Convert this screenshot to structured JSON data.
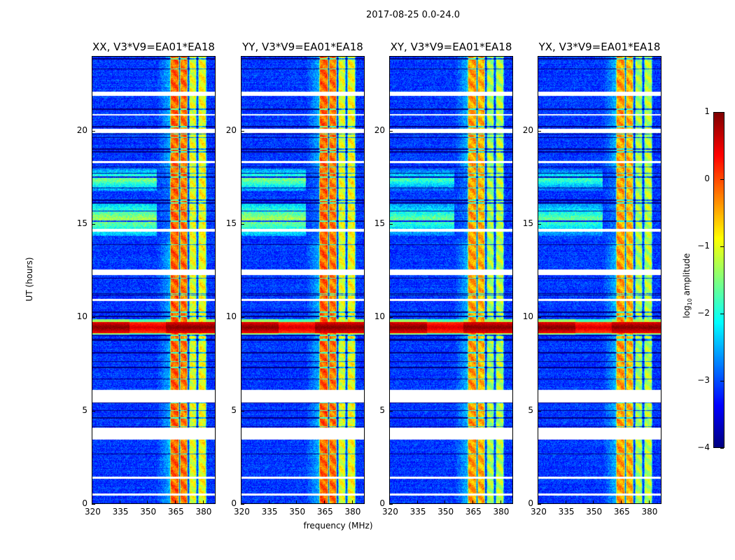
{
  "figure": {
    "suptitle": "2017-08-25 0.0-24.0",
    "ylabel": "UT (hours)",
    "xlabel": "frequency (MHz)",
    "colorbar_label": "log10 amplitude",
    "colorbar_label_main": "log",
    "colorbar_label_sub": "10",
    "colorbar_label_rest": " amplitude"
  },
  "chart_data": {
    "type": "heatmap",
    "colormap": "jet",
    "panels": [
      {
        "title": "XX, V3*V9=EA01*EA18",
        "pol": "XX"
      },
      {
        "title": "YY, V3*V9=EA01*EA18",
        "pol": "YY"
      },
      {
        "title": "XY, V3*V9=EA01*EA18",
        "pol": "XY"
      },
      {
        "title": "YX, V3*V9=EA01*EA18",
        "pol": "YX"
      }
    ],
    "xlim": [
      320,
      387
    ],
    "ylim": [
      0,
      24
    ],
    "xticks": [
      320,
      335,
      350,
      365,
      380
    ],
    "yticks": [
      0,
      5,
      10,
      15,
      20
    ],
    "clim": [
      -4,
      1
    ],
    "colorbar_ticks": [
      1,
      0,
      -1,
      -2,
      -3,
      -4
    ],
    "background_level": -3.1,
    "bright_channels": [
      {
        "fmin": 362.3,
        "fmax": 367.2,
        "level": -0.1
      },
      {
        "fmin": 367.6,
        "fmax": 372.0,
        "level": -0.2
      },
      {
        "fmin": 372.8,
        "fmax": 377.0,
        "level": -1.0
      },
      {
        "fmin": 377.7,
        "fmax": 382.3,
        "level": -0.9
      }
    ],
    "flagged_hours": [
      [
        3.45,
        4.1
      ],
      [
        5.45,
        6.1
      ],
      [
        0.45,
        0.55
      ],
      [
        1.35,
        1.45
      ],
      [
        10.9,
        11.0
      ],
      [
        12.3,
        12.6
      ],
      [
        14.6,
        14.75
      ],
      [
        18.3,
        18.4
      ],
      [
        19.9,
        20.15
      ],
      [
        21.9,
        22.15
      ],
      [
        20.85,
        20.95
      ]
    ],
    "rfi_events": [
      {
        "tmin": 9.05,
        "tmax": 9.9,
        "level": 0.8,
        "note": "broadband"
      },
      {
        "tmin": 14.4,
        "tmax": 16.2,
        "level": -1.3,
        "note": "low-frequency"
      },
      {
        "tmin": 16.8,
        "tmax": 18.0,
        "level": -1.5,
        "note": "low-frequency"
      }
    ]
  }
}
